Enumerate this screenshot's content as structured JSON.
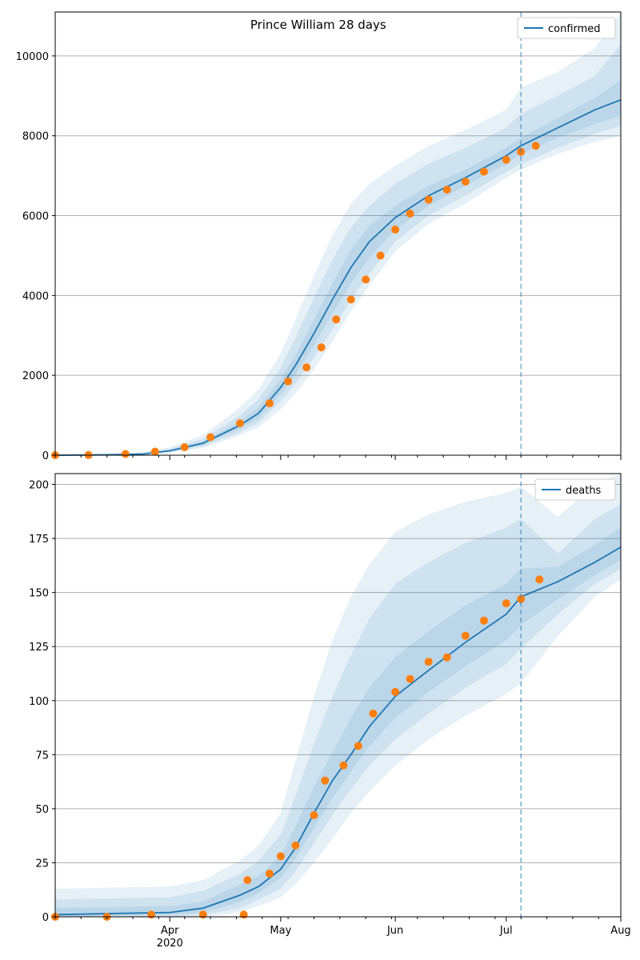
{
  "chart_data": [
    {
      "type": "line",
      "title": "Prince William 28 days",
      "legend": {
        "label": "confirmed",
        "placement": "top-right"
      },
      "xlim": [
        "2020-03-01",
        "2020-08-01"
      ],
      "x_ticks": [
        "Apr",
        "May",
        "Jun",
        "Jul",
        "Aug"
      ],
      "x_tick_year": "2020",
      "ylim": [
        0,
        11100
      ],
      "y_ticks": [
        "0",
        "2000",
        "4000",
        "6000",
        "8000",
        "10000"
      ],
      "y_tick_values": [
        0,
        2000,
        4000,
        6000,
        8000,
        10000
      ],
      "grid": "horizontal",
      "forecast_start": "2020-07-05",
      "colors": {
        "line": "#1f77b4",
        "observed": "#ff7f0e",
        "band": "#1f77b4"
      },
      "model": {
        "x": [
          "2020-03-01",
          "2020-03-15",
          "2020-03-25",
          "2020-04-01",
          "2020-04-10",
          "2020-04-20",
          "2020-04-25",
          "2020-05-01",
          "2020-05-05",
          "2020-05-10",
          "2020-05-15",
          "2020-05-20",
          "2020-05-25",
          "2020-06-01",
          "2020-06-10",
          "2020-06-20",
          "2020-07-01",
          "2020-07-05",
          "2020-07-15",
          "2020-07-25",
          "2020-08-01"
        ],
        "median": [
          0,
          10,
          30,
          110,
          300,
          750,
          1050,
          1700,
          2250,
          3050,
          3900,
          4700,
          5350,
          5950,
          6500,
          6950,
          7500,
          7750,
          8200,
          8650,
          8900
        ],
        "bands": [
          {
            "lower": [
              0,
              0,
              10,
              60,
              180,
              500,
              700,
              1150,
              1550,
              2150,
              2850,
              3600,
              4250,
              5100,
              5800,
              6300,
              6950,
              7150,
              7550,
              7850,
              8000
            ],
            "upper": [
              20,
              40,
              80,
              200,
              500,
              1200,
              1650,
              2550,
              3400,
              4500,
              5500,
              6300,
              6800,
              7250,
              7750,
              8150,
              8650,
              9200,
              9600,
              10200,
              11100
            ]
          },
          {
            "lower": [
              0,
              0,
              15,
              80,
              220,
              580,
              820,
              1350,
              1800,
              2450,
              3150,
              3900,
              4550,
              5350,
              6000,
              6500,
              7100,
              7300,
              7700,
              8050,
              8250
            ],
            "upper": [
              15,
              30,
              60,
              160,
              410,
              1000,
              1400,
              2200,
              2950,
              3950,
              4900,
              5700,
              6250,
              6800,
              7300,
              7700,
              8200,
              8550,
              9000,
              9500,
              10300
            ]
          },
          {
            "lower": [
              0,
              5,
              20,
              95,
              260,
              670,
              930,
              1530,
              2030,
              2750,
              3550,
              4300,
              4950,
              5650,
              6250,
              6750,
              7300,
              7550,
              7950,
              8300,
              8500
            ],
            "upper": [
              12,
              20,
              45,
              130,
              350,
              850,
              1200,
              1900,
              2500,
              3400,
              4300,
              5150,
              5750,
              6250,
              6750,
              7150,
              7700,
              7950,
              8450,
              8950,
              9400
            ]
          }
        ]
      },
      "observed": {
        "x": [
          "2020-03-01",
          "2020-03-10",
          "2020-03-20",
          "2020-03-28",
          "2020-04-05",
          "2020-04-12",
          "2020-04-20",
          "2020-04-28",
          "2020-05-03",
          "2020-05-08",
          "2020-05-12",
          "2020-05-16",
          "2020-05-20",
          "2020-05-24",
          "2020-05-28",
          "2020-06-01",
          "2020-06-05",
          "2020-06-10",
          "2020-06-15",
          "2020-06-20",
          "2020-06-25",
          "2020-07-01",
          "2020-07-05",
          "2020-07-09"
        ],
        "y": [
          0,
          5,
          30,
          90,
          200,
          450,
          800,
          1300,
          1850,
          2200,
          2700,
          3400,
          3900,
          4400,
          5000,
          5650,
          6050,
          6400,
          6650,
          6850,
          7100,
          7400,
          7600,
          7750
        ]
      }
    },
    {
      "type": "line",
      "title": "",
      "legend": {
        "label": "deaths",
        "placement": "top-right"
      },
      "xlim": [
        "2020-03-01",
        "2020-08-01"
      ],
      "x_ticks": [
        "Apr",
        "May",
        "Jun",
        "Jul",
        "Aug"
      ],
      "x_tick_year": "2020",
      "ylim": [
        0,
        205
      ],
      "y_ticks": [
        "0",
        "25",
        "50",
        "75",
        "100",
        "125",
        "150",
        "175",
        "200"
      ],
      "y_tick_values": [
        0,
        25,
        50,
        75,
        100,
        125,
        150,
        175,
        200
      ],
      "grid": "horizontal",
      "forecast_start": "2020-07-05",
      "colors": {
        "line": "#1f77b4",
        "observed": "#ff7f0e",
        "band": "#1f77b4"
      },
      "model": {
        "x": [
          "2020-03-01",
          "2020-04-01",
          "2020-04-10",
          "2020-04-20",
          "2020-04-25",
          "2020-05-01",
          "2020-05-05",
          "2020-05-10",
          "2020-05-15",
          "2020-05-20",
          "2020-05-25",
          "2020-06-01",
          "2020-06-10",
          "2020-06-20",
          "2020-07-01",
          "2020-07-05",
          "2020-07-15",
          "2020-07-25",
          "2020-08-01"
        ],
        "median": [
          1,
          2,
          4,
          10,
          14,
          22,
          32,
          48,
          63,
          75,
          88,
          102,
          114,
          127,
          140,
          148,
          155,
          164,
          171
        ],
        "bands": [
          {
            "lower": [
              0,
              0,
              0,
              2,
              5,
              9,
              15,
              25,
              36,
              48,
              58,
              70,
              82,
              93,
              103,
              108,
              130,
              148,
              156
            ],
            "upper": [
              13,
              14,
              17,
              26,
              33,
              48,
              72,
              102,
              128,
              148,
              163,
              178,
              186,
              192,
              196,
              199,
              185,
              200,
              205
            ]
          },
          {
            "lower": [
              0,
              0,
              1,
              4,
              8,
              13,
              21,
              34,
              47,
              59,
              70,
              82,
              94,
              106,
              117,
              124,
              140,
              154,
              161
            ],
            "upper": [
              8,
              9,
              12,
              20,
              26,
              38,
              56,
              80,
              102,
              121,
              138,
              154,
              164,
              173,
              180,
              184,
              168,
              184,
              191
            ]
          },
          {
            "lower": [
              0,
              1,
              2,
              7,
              11,
              18,
              27,
              41,
              55,
              67,
              79,
              92,
              104,
              116,
              128,
              135,
              147,
              158,
              165
            ],
            "upper": [
              4,
              5,
              7,
              15,
              19,
              28,
              42,
              60,
              76,
              92,
              106,
              120,
              132,
              144,
              154,
              161,
              162,
              172,
              180
            ]
          }
        ]
      },
      "observed": {
        "x": [
          "2020-03-01",
          "2020-03-15",
          "2020-03-27",
          "2020-04-10",
          "2020-04-21",
          "2020-04-22",
          "2020-04-28",
          "2020-05-01",
          "2020-05-05",
          "2020-05-10",
          "2020-05-13",
          "2020-05-18",
          "2020-05-22",
          "2020-05-26",
          "2020-06-01",
          "2020-06-05",
          "2020-06-10",
          "2020-06-15",
          "2020-06-20",
          "2020-06-25",
          "2020-07-01",
          "2020-07-05",
          "2020-07-10"
        ],
        "y": [
          0,
          0,
          1,
          1,
          1,
          17,
          20,
          28,
          33,
          47,
          63,
          70,
          79,
          94,
          104,
          110,
          118,
          120,
          130,
          137,
          145,
          147,
          156
        ]
      }
    }
  ]
}
